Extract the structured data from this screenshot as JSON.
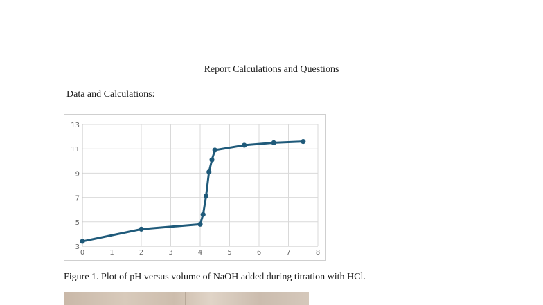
{
  "document": {
    "heading": "Report Calculations and Questions",
    "subheading": "Data and Calculations:",
    "caption": "Figure 1. Plot of pH versus volume of NaOH added during titration with HCl."
  },
  "chart_data": {
    "type": "line",
    "title": "",
    "xlabel": "",
    "ylabel": "",
    "xlim": [
      0,
      8
    ],
    "ylim": [
      3,
      13
    ],
    "x_ticks": [
      0,
      1,
      2,
      3,
      4,
      5,
      6,
      7,
      8
    ],
    "y_ticks": [
      3,
      5,
      7,
      9,
      11,
      13
    ],
    "grid": true,
    "legend": "none",
    "series": [
      {
        "color": "#1f5a7a",
        "x": [
          0,
          2,
          4,
          4.1,
          4.2,
          4.3,
          4.4,
          4.5,
          5.5,
          6.5,
          7.5
        ],
        "y": [
          3.4,
          4.4,
          4.8,
          5.6,
          7.1,
          9.1,
          10.1,
          10.9,
          11.3,
          11.5,
          11.6
        ]
      }
    ]
  },
  "figure_photo": {
    "description_visible": false
  }
}
